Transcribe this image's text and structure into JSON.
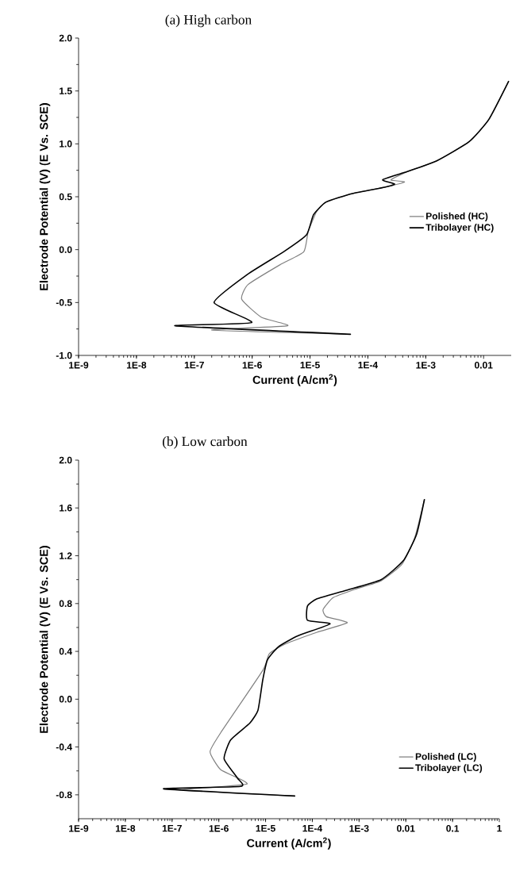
{
  "chart_data": [
    {
      "type": "line",
      "title": "(a) High carbon",
      "xlabel": "Current (A/cm$^{2}$)",
      "ylabel": "Electrode Potential (V) (E Vs. SCE)",
      "log": "x",
      "legend": "right",
      "xlim": [
        1e-09,
        0.03
      ],
      "ylim": [
        -1.0,
        2.0
      ],
      "xticks": [
        {
          "value": 1e-09,
          "label": "1E-9"
        },
        {
          "value": 1e-08,
          "label": "1E-8"
        },
        {
          "value": 1e-07,
          "label": "1E-7"
        },
        {
          "value": 1e-06,
          "label": "1E-6"
        },
        {
          "value": 1e-05,
          "label": "1E-5"
        },
        {
          "value": 0.0001,
          "label": "1E-4"
        },
        {
          "value": 0.001,
          "label": "1E-3"
        },
        0.01
      ],
      "yticks": [
        {
          "value": -1.0,
          "label": "-1.0"
        },
        -0.5,
        {
          "value": 0.0,
          "label": "0.0"
        },
        0.5,
        {
          "value": 1.0,
          "label": "1.0"
        },
        1.5,
        {
          "value": 2.0,
          "label": "2.0"
        }
      ],
      "series": [
        {
          "name": "Polished (HC)",
          "color": "#808080",
          "x": [
            4.2e-05,
            2e-07,
            4.1e-06,
            1.45e-06,
            6.6e-07,
            8.5e-07,
            3.1e-06,
            7.8e-06,
            9.3e-06,
            1.3e-05,
            1.9e-05,
            5.4e-05,
            0.000195,
            0.00043,
            0.00025,
            0.0005,
            0.00155,
            0.0056,
            0.0123,
            0.027
          ],
          "values": [
            -0.8,
            -0.76,
            -0.72,
            -0.64,
            -0.47,
            -0.33,
            -0.14,
            -0.02,
            0.17,
            0.36,
            0.45,
            0.53,
            0.59,
            0.64,
            0.66,
            0.74,
            0.84,
            1.02,
            1.23,
            1.59
          ]
        },
        {
          "name": "Tribolayer (HC)",
          "color": "#000000",
          "x": [
            5e-05,
            4.7e-08,
            9.8e-07,
            2.2e-07,
            8.5e-07,
            3.5e-06,
            8.7e-06,
            1.15e-05,
            1.9e-05,
            5.4e-05,
            0.000195,
            0.00029,
            0.00018,
            0.00043,
            0.00155,
            0.0056,
            0.0123,
            0.027
          ],
          "values": [
            -0.8,
            -0.72,
            -0.69,
            -0.5,
            -0.23,
            -0.02,
            0.14,
            0.33,
            0.45,
            0.53,
            0.59,
            0.62,
            0.66,
            0.73,
            0.84,
            1.02,
            1.23,
            1.59
          ]
        }
      ]
    },
    {
      "type": "line",
      "title": "(b) Low carbon",
      "xlabel": "Current (A/cm$^{2}$)",
      "ylabel": "Electrode Potential (V) (E Vs. SCE)",
      "log": "x",
      "legend": "bottom right",
      "xlim": [
        1e-09,
        1
      ],
      "ylim": [
        -1.0,
        2.0
      ],
      "xticks": [
        {
          "value": 1e-09,
          "label": "1E-9"
        },
        {
          "value": 1e-08,
          "label": "1E-8"
        },
        {
          "value": 1e-07,
          "label": "1E-7"
        },
        {
          "value": 1e-06,
          "label": "1E-6"
        },
        {
          "value": 1e-05,
          "label": "1E-5"
        },
        {
          "value": 0.0001,
          "label": "1E-4"
        },
        {
          "value": 0.001,
          "label": "1E-3"
        },
        0.01,
        0.1,
        1
      ],
      "yticks": [
        -0.8,
        -0.4,
        {
          "value": 0.0,
          "label": "0.0"
        },
        0.4,
        0.8,
        1.2,
        1.6,
        {
          "value": 2.0,
          "label": "2.0"
        }
      ],
      "series": [
        {
          "name": "Polished (LC)",
          "color": "#808080",
          "x": [
            4.2e-05,
            1.7e-07,
            4e-06,
            1.1e-06,
            6.5e-07,
            1.1e-06,
            8.7e-06,
            1.2e-05,
            2.6e-05,
            0.000126,
            0.00056,
            0.0002,
            0.00017,
            0.00028,
            0.00083,
            0.00295,
            0.0083,
            0.0155,
            0.025
          ],
          "values": [
            -0.81,
            -0.76,
            -0.71,
            -0.59,
            -0.44,
            -0.28,
            0.24,
            0.38,
            0.46,
            0.56,
            0.64,
            0.69,
            0.75,
            0.85,
            0.92,
            0.99,
            1.13,
            1.35,
            1.67
          ]
        },
        {
          "name": "Tribolayer (LC)",
          "color": "#000000",
          "x": [
            4.2e-05,
            6.6e-08,
            2.9e-06,
            2.5e-06,
            1.3e-06,
            1.8e-06,
            4.6e-06,
            6.9e-06,
            8.7e-06,
            1.1e-05,
            1.9e-05,
            4.9e-05,
            0.00024,
            7.9e-05,
            7.9e-05,
            0.000126,
            0.00052,
            0.00295,
            0.0089,
            0.017,
            0.025
          ],
          "values": [
            -0.81,
            -0.75,
            -0.73,
            -0.66,
            -0.5,
            -0.34,
            -0.2,
            -0.09,
            0.16,
            0.33,
            0.44,
            0.53,
            0.63,
            0.66,
            0.78,
            0.84,
            0.91,
            1.0,
            1.16,
            1.38,
            1.67
          ]
        }
      ]
    }
  ]
}
